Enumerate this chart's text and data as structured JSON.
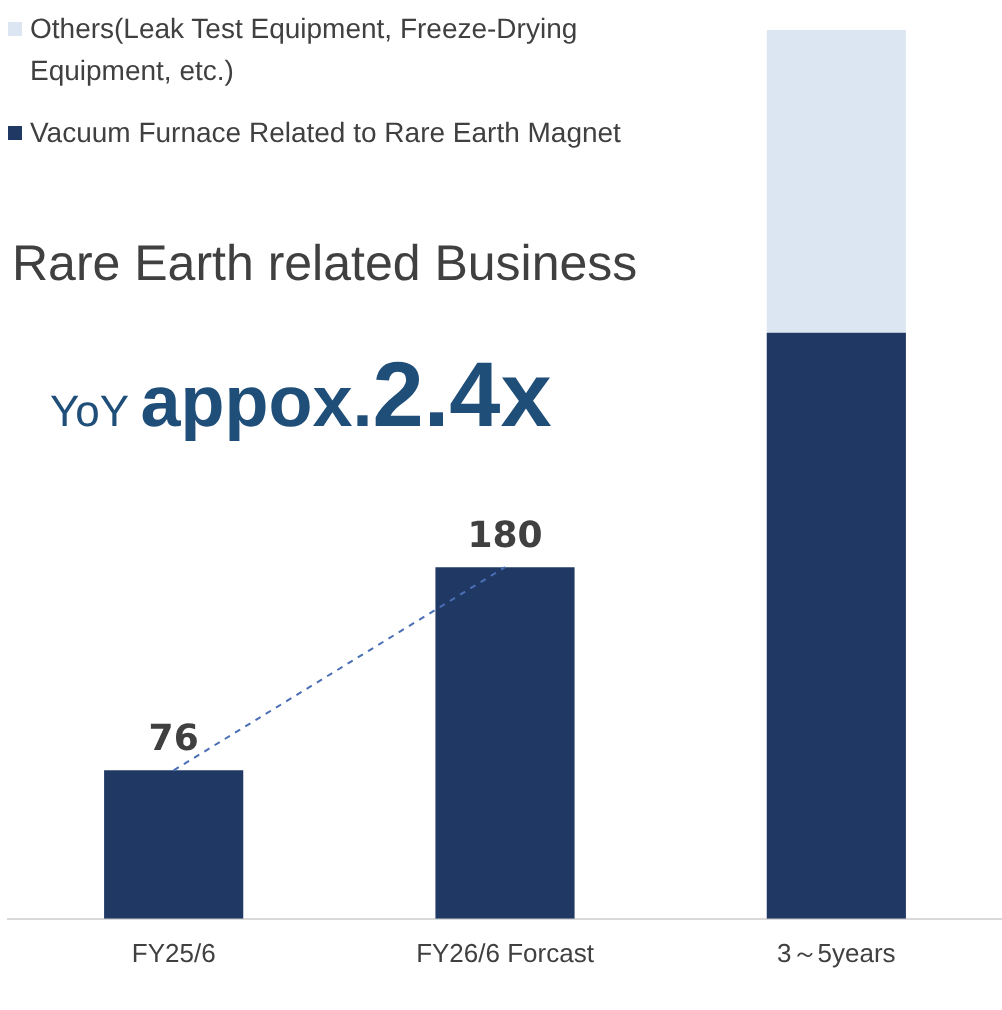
{
  "chart_data": {
    "type": "bar",
    "title": "Rare Earth related Business",
    "annotations": [
      "YoY appox.2.4x"
    ],
    "categories": [
      "FY25/6",
      "FY26/6 Forcast",
      "3～5years"
    ],
    "stacked": true,
    "legend": "top left",
    "grid": false,
    "series": [
      {
        "name": "Vacuum Furnace Related to Rare Earth Magnet",
        "color": "#1f3864",
        "values": [
          76,
          180,
          300
        ],
        "value_labels": [
          "76",
          "180",
          null
        ]
      },
      {
        "name": "Others(Leak Test Equipment, Freeze-Drying Equipment, etc.)",
        "color": "#dce6f2",
        "values": [
          null,
          null,
          155
        ]
      },
      {
        "type": "line",
        "color": "#4a6fb5",
        "values": [
          76,
          180,
          null
        ],
        "line_style": "dashed",
        "marker": "none"
      }
    ]
  }
}
